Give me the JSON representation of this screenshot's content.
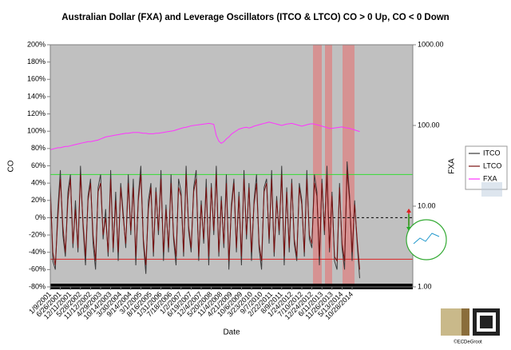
{
  "chart_data": {
    "type": "line",
    "title": "Australian Dollar (FXA) and Leverage Oscillators (ITCO & LTCO) CO > 0 Up, CO < 0 Down",
    "xlabel": "Date",
    "ylabel": "CO",
    "y2label": "FXA",
    "credit": "©ECDeGroot",
    "categories": [
      "1/9/2001",
      null,
      null,
      null,
      "6/26/2001",
      null,
      null,
      null,
      "12/11/2001",
      null,
      null,
      null,
      "5/28/2002",
      null,
      null,
      null,
      "11/12/2002",
      null,
      null,
      null,
      "4/29/2003",
      null,
      null,
      null,
      "10/14/2003",
      null,
      null,
      null,
      "3/30/2004",
      null,
      null,
      null,
      "9/14/2004",
      null,
      null,
      null,
      "3/1/2005",
      null,
      null,
      null,
      "8/16/2005",
      null,
      null,
      null,
      "1/31/2006",
      null,
      null,
      null,
      "7/18/2006",
      null,
      null,
      null,
      "1/2/2007",
      null,
      null,
      null,
      "6/19/2007",
      null,
      null,
      null,
      "12/4/2007",
      null,
      null,
      null,
      "5/20/2008",
      null,
      null,
      null,
      "11/4/2008",
      null,
      null,
      null,
      "4/21/2009",
      null,
      null,
      null,
      "10/6/2009",
      null,
      null,
      null,
      "3/23/2010",
      null,
      null,
      null,
      "9/7/2010",
      null,
      null,
      null,
      "2/22/2011",
      null,
      null,
      null,
      "8/9/2011",
      null,
      null,
      null,
      "1/24/2012",
      null,
      null,
      null,
      "7/10/2012",
      null,
      null,
      null,
      "12/24/2012",
      null,
      null,
      null,
      "6/11/2013",
      null,
      null,
      null,
      "11/26/2013",
      null,
      null,
      null,
      "5/13/2014",
      null,
      null,
      null,
      "10/28/2014",
      null,
      null,
      null
    ],
    "series": [
      {
        "name": "ITCO",
        "color": "#3a3a3a",
        "values": [
          40,
          -50,
          -60,
          10,
          55,
          -20,
          -45,
          30,
          50,
          -35,
          20,
          -40,
          60,
          -10,
          -55,
          25,
          45,
          -30,
          -60,
          35,
          50,
          -25,
          10,
          -45,
          55,
          -40,
          30,
          -50,
          40,
          5,
          -35,
          50,
          -20,
          45,
          -55,
          25,
          60,
          -30,
          -65,
          20,
          40,
          -45,
          35,
          -20,
          55,
          -50,
          15,
          -40,
          50,
          -25,
          -55,
          45,
          30,
          -45,
          60,
          -15,
          -40,
          35,
          55,
          -50,
          20,
          -30,
          45,
          -55,
          40,
          -20,
          60,
          -45,
          25,
          -35,
          50,
          -60,
          15,
          45,
          -40,
          30,
          -55,
          55,
          -25,
          40,
          -50,
          20,
          50,
          -35,
          -60,
          35,
          45,
          -30,
          55,
          -45,
          25,
          -20,
          60,
          -55,
          35,
          -40,
          45,
          -30,
          -50,
          40,
          20,
          -45,
          55,
          -25,
          -35,
          50,
          30,
          -55,
          45,
          -20,
          60,
          -40,
          30,
          -50,
          -60,
          40,
          -35,
          -60,
          65,
          25,
          -50,
          20,
          -30,
          -70
        ]
      },
      {
        "name": "LTCO",
        "color": "#7a1010",
        "values": [
          30,
          -40,
          -55,
          0,
          45,
          -10,
          -40,
          20,
          45,
          -30,
          10,
          -35,
          50,
          -5,
          -45,
          20,
          40,
          -20,
          -50,
          30,
          40,
          -20,
          0,
          -40,
          45,
          -35,
          20,
          -40,
          35,
          0,
          -30,
          40,
          -15,
          35,
          -45,
          20,
          50,
          -25,
          -55,
          10,
          35,
          -40,
          30,
          -15,
          45,
          -40,
          10,
          -35,
          40,
          -20,
          -45,
          35,
          25,
          -40,
          50,
          -10,
          -35,
          30,
          45,
          -45,
          15,
          -25,
          35,
          -45,
          35,
          -15,
          50,
          -40,
          20,
          -30,
          40,
          -50,
          10,
          40,
          -35,
          25,
          -45,
          45,
          -20,
          35,
          -40,
          15,
          40,
          -30,
          -50,
          30,
          40,
          -25,
          45,
          -40,
          20,
          -15,
          50,
          -45,
          30,
          -35,
          40,
          -25,
          -45,
          35,
          15,
          -40,
          45,
          -20,
          -30,
          40,
          25,
          -45,
          40,
          -15,
          50,
          -35,
          25,
          -45,
          -50,
          35,
          -30,
          -50,
          55,
          20,
          -40,
          15,
          -25,
          -60
        ]
      },
      {
        "name": "FXA",
        "color": "#ff33ff",
        "axis": "y2",
        "values": [
          50,
          51,
          52,
          53,
          53,
          54,
          55,
          55,
          56,
          57,
          58,
          59,
          60,
          61,
          62,
          63,
          63,
          64,
          65,
          66,
          68,
          70,
          72,
          73,
          74,
          75,
          76,
          77,
          78,
          79,
          80,
          80,
          81,
          82,
          82,
          82,
          81,
          80,
          80,
          79,
          79,
          79,
          80,
          80,
          81,
          82,
          83,
          84,
          85,
          86,
          88,
          90,
          92,
          94,
          95,
          97,
          99,
          100,
          101,
          102,
          103,
          104,
          105,
          106,
          105,
          103,
          75,
          64,
          60,
          63,
          68,
          72,
          78,
          82,
          86,
          90,
          92,
          94,
          95,
          93,
          95,
          98,
          100,
          102,
          104,
          106,
          108,
          110,
          108,
          106,
          104,
          102,
          100,
          102,
          104,
          105,
          106,
          104,
          102,
          100,
          98,
          100,
          102,
          104,
          105,
          104,
          102,
          100,
          98,
          96,
          94,
          92,
          92,
          93,
          94,
          95,
          96,
          94,
          93,
          92,
          90,
          88,
          86,
          84
        ]
      }
    ],
    "ylim": [
      -80,
      200
    ],
    "yticks": [
      {
        "value": -80,
        "label": "-80%"
      },
      {
        "value": -60,
        "label": "-60%"
      },
      {
        "value": -40,
        "label": "-40%"
      },
      {
        "value": -20,
        "label": "-20%"
      },
      {
        "value": 0,
        "label": "0%"
      },
      {
        "value": 20,
        "label": "20%"
      },
      {
        "value": 40,
        "label": "40%"
      },
      {
        "value": 60,
        "label": "60%"
      },
      {
        "value": 80,
        "label": "80%"
      },
      {
        "value": 100,
        "label": "100%"
      },
      {
        "value": 120,
        "label": "120%"
      },
      {
        "value": 140,
        "label": "140%"
      },
      {
        "value": 160,
        "label": "160%"
      },
      {
        "value": 180,
        "label": "180%"
      },
      {
        "value": 200,
        "label": "200%"
      }
    ],
    "y2lim": [
      1,
      1000
    ],
    "y2log": true,
    "y2ticks": [
      {
        "value": 1,
        "label": "1.00"
      },
      {
        "value": 10,
        "label": "10.00"
      },
      {
        "value": 100,
        "label": "100.00"
      },
      {
        "value": 1000,
        "label": "1000.00"
      }
    ],
    "hlines": [
      {
        "value": 50,
        "color": "#33dd33"
      },
      {
        "value": 0,
        "color": "#000000",
        "dashed": true
      },
      {
        "value": -48,
        "color": "#dd2222"
      }
    ],
    "legend": "right"
  }
}
